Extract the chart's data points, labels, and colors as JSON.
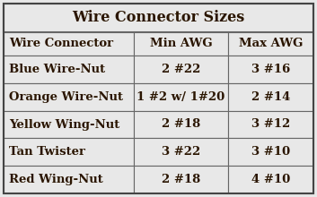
{
  "title": "Wire Connector Sizes",
  "headers": [
    "Wire Connector",
    "Min AWG",
    "Max AWG"
  ],
  "rows": [
    [
      "Blue Wire-Nut",
      "2 #22",
      "3 #16"
    ],
    [
      "Orange Wire-Nut",
      "1 #2 w/ 1#20",
      "2 #14"
    ],
    [
      "Yellow Wing-Nut",
      "2 #18",
      "3 #12"
    ],
    [
      "Tan Twister",
      "3 #22",
      "3 #10"
    ],
    [
      "Red Wing-Nut",
      "2 #18",
      "4 #10"
    ]
  ],
  "bg_color": "#e8e8e8",
  "text_color": "#2a1500",
  "border_color": "#666666",
  "title_fontsize": 11.5,
  "header_fontsize": 9.5,
  "cell_fontsize": 9.5,
  "fig_width": 3.53,
  "fig_height": 2.2,
  "dpi": 100
}
